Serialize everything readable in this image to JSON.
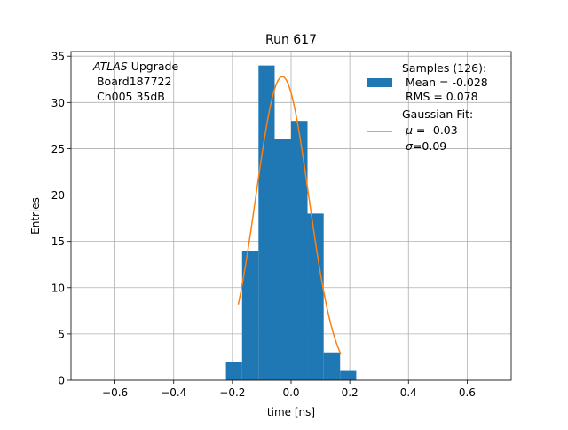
{
  "chart_data": {
    "type": "bar",
    "title": "Run 617",
    "xlabel": "time [ns]",
    "ylabel": "Entries",
    "xlim": [
      -0.75,
      0.75
    ],
    "ylim": [
      0,
      35.5
    ],
    "xticks": [
      -0.6,
      -0.4,
      -0.2,
      0.0,
      0.2,
      0.4,
      0.6
    ],
    "xtick_labels": [
      "−0.6",
      "−0.4",
      "−0.2",
      "0.0",
      "0.2",
      "0.4",
      "0.6"
    ],
    "yticks": [
      0,
      5,
      10,
      15,
      20,
      25,
      30,
      35
    ],
    "grid": true,
    "legend_position": "top-right",
    "annotation": {
      "lines": [
        {
          "italic": "ATLAS",
          "rest": " Upgrade"
        },
        {
          "italic": "",
          "rest": " Board187722"
        },
        {
          "italic": "",
          "rest": " Ch005 35dB"
        }
      ]
    },
    "histogram": {
      "color": "#1f77b4",
      "bins": [
        {
          "x0": -0.222,
          "x1": -0.167,
          "value": 2
        },
        {
          "x0": -0.167,
          "x1": -0.111,
          "value": 14
        },
        {
          "x0": -0.111,
          "x1": -0.056,
          "value": 34
        },
        {
          "x0": -0.056,
          "x1": 0.0,
          "value": 26
        },
        {
          "x0": 0.0,
          "x1": 0.056,
          "value": 28
        },
        {
          "x0": 0.056,
          "x1": 0.111,
          "value": 18
        },
        {
          "x0": 0.111,
          "x1": 0.167,
          "value": 3
        },
        {
          "x0": 0.167,
          "x1": 0.222,
          "value": 1
        }
      ],
      "legend": [
        "Samples (126):",
        " Mean = -0.028",
        " RMS = 0.078"
      ]
    },
    "fit": {
      "color": "#ff7f0e",
      "amplitude": 32.8,
      "mu": -0.03,
      "sigma": 0.09,
      "x_range": [
        -0.18,
        0.17
      ],
      "legend_title": "Gaussian Fit:",
      "legend_mu_symbol": "μ",
      "legend_mu_rest": " = -0.03",
      "legend_sigma_symbol": "σ",
      "legend_sigma_rest": "=0.09"
    }
  }
}
